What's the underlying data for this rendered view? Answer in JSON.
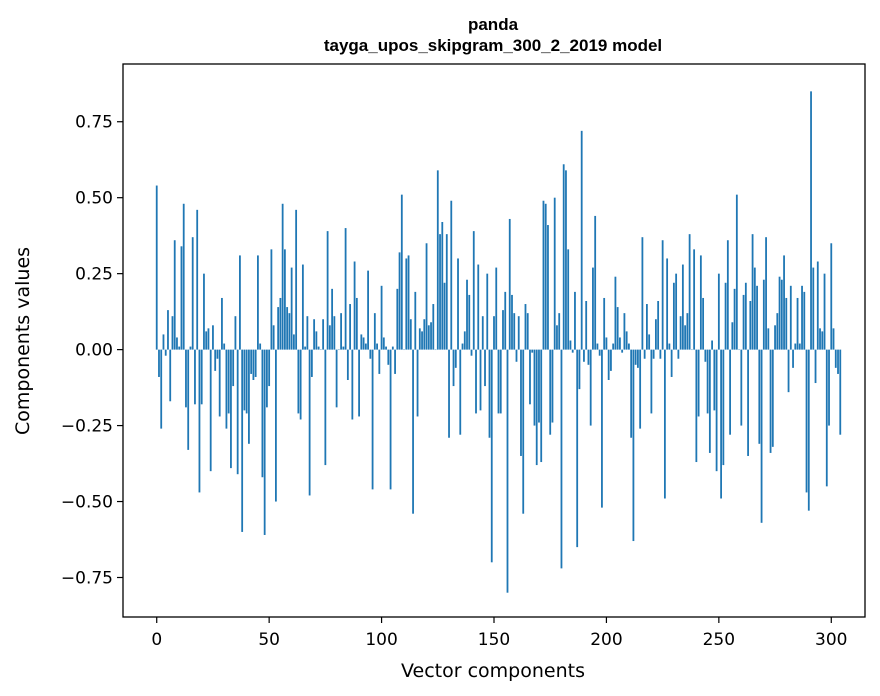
{
  "chart_data": {
    "type": "bar",
    "title": [
      "panda",
      "tayga_upos_skipgram_300_2_2019 model"
    ],
    "xlabel": "Vector components",
    "ylabel": "Components values",
    "xlim": [
      -15,
      315
    ],
    "ylim": [
      -0.88,
      0.94
    ],
    "xticks": [
      0,
      50,
      100,
      150,
      200,
      250,
      300
    ],
    "xtick_labels": [
      "0",
      "50",
      "100",
      "150",
      "200",
      "250",
      "300"
    ],
    "yticks": [
      -0.75,
      -0.5,
      -0.25,
      0.0,
      0.25,
      0.5,
      0.75
    ],
    "ytick_labels": [
      "−0.75",
      "−0.50",
      "−0.25",
      "0.00",
      "0.25",
      "0.50",
      "0.75"
    ],
    "bar_color": "#1f77b4",
    "grid": false,
    "legend": "none",
    "values": [
      0.54,
      -0.09,
      -0.26,
      0.05,
      -0.02,
      0.13,
      -0.17,
      0.11,
      0.36,
      0.04,
      0.01,
      0.34,
      0.48,
      -0.19,
      -0.33,
      0.01,
      0.37,
      -0.18,
      0.46,
      -0.47,
      -0.18,
      0.25,
      0.06,
      0.07,
      -0.4,
      0.08,
      -0.07,
      -0.03,
      -0.22,
      0.17,
      0.02,
      -0.26,
      -0.21,
      -0.39,
      -0.12,
      0.11,
      -0.41,
      0.31,
      -0.6,
      -0.2,
      -0.21,
      -0.31,
      -0.08,
      -0.1,
      -0.09,
      0.31,
      0.02,
      -0.42,
      -0.61,
      -0.19,
      -0.12,
      0.33,
      0.08,
      -0.5,
      0.14,
      0.17,
      0.48,
      0.33,
      0.14,
      0.12,
      0.27,
      0.05,
      0.46,
      -0.21,
      -0.23,
      0.28,
      0.01,
      0.11,
      -0.48,
      -0.09,
      0.1,
      0.06,
      0.01,
      0.0,
      0.1,
      -0.38,
      0.39,
      0.08,
      0.2,
      0.11,
      -0.19,
      0.0,
      0.12,
      0.01,
      0.4,
      -0.1,
      0.15,
      -0.23,
      0.29,
      0.17,
      -0.22,
      0.05,
      0.04,
      0.02,
      0.26,
      -0.03,
      -0.46,
      0.12,
      0.02,
      -0.08,
      0.21,
      0.04,
      0.01,
      -0.05,
      -0.46,
      0.01,
      -0.08,
      0.2,
      0.32,
      0.51,
      0.0,
      0.3,
      0.31,
      0.1,
      -0.54,
      0.19,
      -0.22,
      0.07,
      0.06,
      0.1,
      0.35,
      0.08,
      0.09,
      0.15,
      0.0,
      0.59,
      0.38,
      0.42,
      0.22,
      0.38,
      -0.29,
      0.49,
      -0.12,
      -0.06,
      0.3,
      -0.28,
      0.02,
      0.06,
      0.23,
      0.18,
      -0.02,
      0.39,
      -0.21,
      0.28,
      -0.2,
      0.11,
      -0.12,
      0.25,
      -0.29,
      -0.7,
      0.11,
      0.27,
      -0.21,
      -0.21,
      0.13,
      0.19,
      -0.8,
      0.43,
      0.18,
      0.12,
      -0.04,
      0.11,
      -0.35,
      -0.54,
      0.15,
      0.12,
      -0.18,
      -0.01,
      -0.25,
      -0.38,
      -0.24,
      -0.37,
      0.49,
      0.48,
      0.41,
      -0.28,
      -0.24,
      0.5,
      0.08,
      0.12,
      -0.72,
      0.61,
      0.59,
      0.33,
      0.03,
      -0.01,
      0.19,
      -0.65,
      -0.13,
      0.72,
      -0.04,
      0.16,
      -0.05,
      -0.25,
      0.27,
      0.44,
      0.02,
      -0.02,
      -0.52,
      0.17,
      0.04,
      -0.1,
      -0.07,
      0.02,
      0.24,
      0.14,
      0.04,
      -0.01,
      0.12,
      0.06,
      0.02,
      -0.29,
      -0.63,
      -0.05,
      -0.06,
      -0.26,
      0.37,
      -0.03,
      0.15,
      0.05,
      -0.21,
      -0.03,
      0.1,
      0.16,
      -0.03,
      0.36,
      -0.49,
      0.3,
      0.02,
      -0.09,
      0.22,
      0.25,
      -0.03,
      0.11,
      0.28,
      0.08,
      0.12,
      0.38,
      0.0,
      0.33,
      -0.37,
      -0.22,
      0.31,
      0.17,
      -0.04,
      -0.21,
      -0.34,
      0.03,
      -0.2,
      -0.4,
      0.25,
      -0.49,
      -0.38,
      0.22,
      0.36,
      -0.28,
      0.09,
      0.2,
      0.51,
      0.0,
      -0.25,
      0.18,
      0.22,
      -0.35,
      0.16,
      0.38,
      0.27,
      0.21,
      -0.31,
      -0.57,
      0.23,
      0.37,
      0.07,
      -0.34,
      -0.32,
      0.08,
      0.12,
      0.24,
      0.23,
      0.31,
      0.17,
      -0.14,
      0.21,
      -0.06,
      0.02,
      0.17,
      0.02,
      0.21,
      0.19,
      -0.47,
      -0.53,
      0.85,
      0.27,
      -0.11,
      0.29,
      0.07,
      0.06,
      0.25,
      -0.45,
      -0.25,
      0.35,
      0.07,
      -0.06,
      -0.08,
      -0.28
    ]
  }
}
